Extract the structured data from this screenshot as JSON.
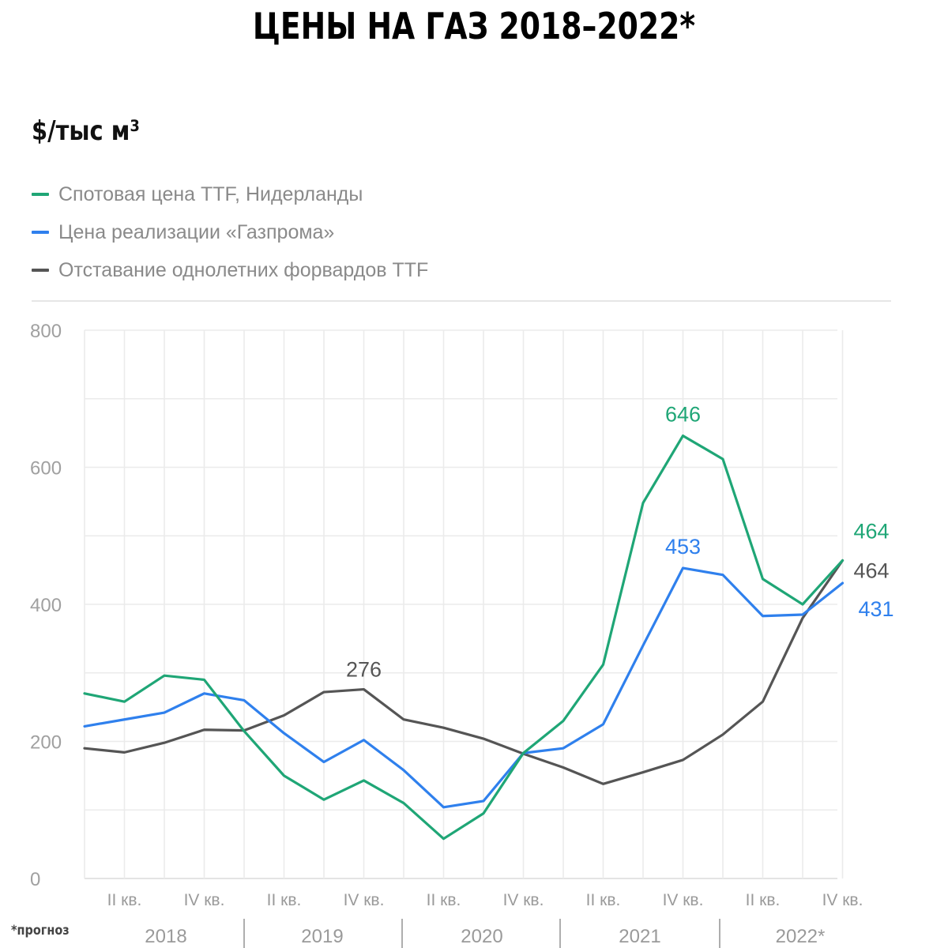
{
  "title": "ЦЕНЫ НА ГАЗ 2018–2022*",
  "unit_label": "$/тыс м³",
  "footnote": "*прогноз",
  "legend": [
    {
      "label": "Спотовая цена TTF, Нидерланды",
      "color": "#1fa676"
    },
    {
      "label": "Цена реализации «Газпрома»",
      "color": "#2f80ed"
    },
    {
      "label": "Отставание однолетних форвардов TTF",
      "color": "#555555"
    }
  ],
  "chart_data": {
    "type": "line",
    "title": "ЦЕНЫ НА ГАЗ 2018–2022*",
    "ylabel": "$/тыс м³",
    "ylim": [
      0,
      800
    ],
    "yticks": [
      0,
      200,
      400,
      600,
      800
    ],
    "grid": true,
    "quarter_tick_labels": [
      "II кв.",
      "IV кв.",
      "II кв.",
      "IV кв.",
      "II кв.",
      "IV кв.",
      "II кв.",
      "IV кв.",
      "II кв.",
      "IV кв."
    ],
    "quarter_tick_indices": [
      1,
      3,
      5,
      7,
      9,
      11,
      13,
      15,
      17,
      19
    ],
    "years": [
      "2018",
      "2019",
      "2020",
      "2021",
      "2022*"
    ],
    "x": [
      1,
      2,
      3,
      4,
      5,
      6,
      7,
      8,
      9,
      10,
      11,
      12,
      13,
      14,
      15,
      16,
      17,
      18,
      19,
      20
    ],
    "series": [
      {
        "name": "Спотовая цена TTF, Нидерланды",
        "color": "#1fa676",
        "values": [
          270,
          258,
          296,
          290,
          215,
          150,
          115,
          143,
          110,
          58,
          95,
          183,
          230,
          312,
          548,
          646,
          612,
          437,
          400,
          464
        ]
      },
      {
        "name": "Цена реализации «Газпрома»",
        "color": "#2f80ed",
        "values": [
          222,
          232,
          242,
          270,
          260,
          212,
          170,
          202,
          158,
          104,
          113,
          183,
          190,
          225,
          340,
          453,
          443,
          383,
          385,
          431
        ]
      },
      {
        "name": "Отставание однолетних форвардов TTF",
        "color": "#555555",
        "values": [
          190,
          184,
          198,
          217,
          216,
          238,
          272,
          276,
          232,
          220,
          204,
          182,
          162,
          138,
          155,
          173,
          210,
          258,
          380,
          464
        ]
      }
    ],
    "annotations": [
      {
        "text": "276",
        "series": 2,
        "index": 8,
        "color": "#555555"
      },
      {
        "text": "646",
        "series": 0,
        "index": 16,
        "color": "#1fa676"
      },
      {
        "text": "453",
        "series": 1,
        "index": 16,
        "color": "#2f80ed"
      },
      {
        "text": "464",
        "series": 0,
        "index": 20,
        "color": "#1fa676"
      },
      {
        "text": "464",
        "series": 2,
        "index": 20,
        "color": "#555555"
      },
      {
        "text": "431",
        "series": 1,
        "index": 20,
        "color": "#2f80ed"
      }
    ]
  }
}
